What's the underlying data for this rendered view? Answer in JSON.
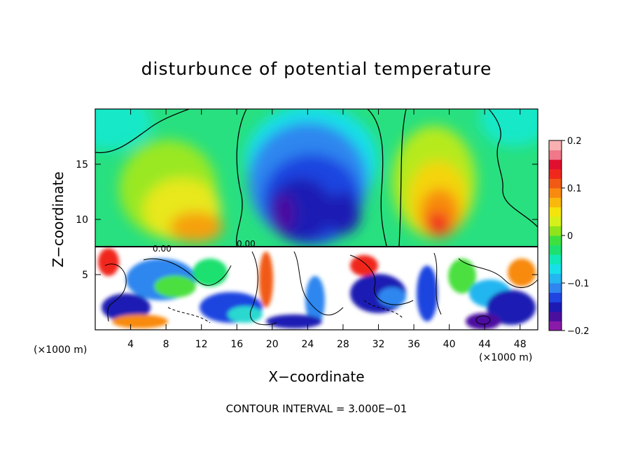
{
  "chart_data": {
    "type": "heatmap",
    "title": "disturbunce of potential temperature",
    "xlabel": "X−coordinate",
    "ylabel": "Z−coordinate",
    "x_unit_left": "(×1000 m)",
    "x_unit_right": "(×1000 m)",
    "xlim": [
      0,
      50
    ],
    "ylim": [
      0,
      20
    ],
    "x_ticks": [
      4,
      8,
      12,
      16,
      20,
      24,
      28,
      32,
      36,
      40,
      44,
      48
    ],
    "y_ticks": [
      5,
      10,
      15
    ],
    "colorbar": {
      "range": [
        -0.2,
        0.2
      ],
      "tick_values": [
        0.2,
        0.1,
        0,
        -0.1,
        -0.2
      ],
      "tick_labels": [
        "0.2",
        "0.1",
        "0",
        "−0.1",
        "−0.2"
      ],
      "colors": [
        "#8a1aa8",
        "#4b0fa0",
        "#1d1ab4",
        "#1f44e0",
        "#2f86ef",
        "#23b6f0",
        "#18e0e8",
        "#10e8b8",
        "#1ee070",
        "#3ee040",
        "#8fe41c",
        "#d6f01a",
        "#f4e40c",
        "#f8b80c",
        "#f88a10",
        "#f05a14",
        "#f0281c",
        "#e01030",
        "#f07888",
        "#f8b0b0"
      ]
    },
    "contour_labels": [
      "0.00",
      "0.00"
    ],
    "field_description": "upper layer (z > 7.5 km): smooth field with negative core near x = 20–30 (min ≈ −0.2 near x≈22, z≈10) and positive lobes near x≈8–14 and x≈36–42 (max ≈ 0.1); lower layer (z < 7.5 km): turbulent field with values outside the color range"
  },
  "footer": "CONTOUR INTERVAL = 3.000E−01"
}
